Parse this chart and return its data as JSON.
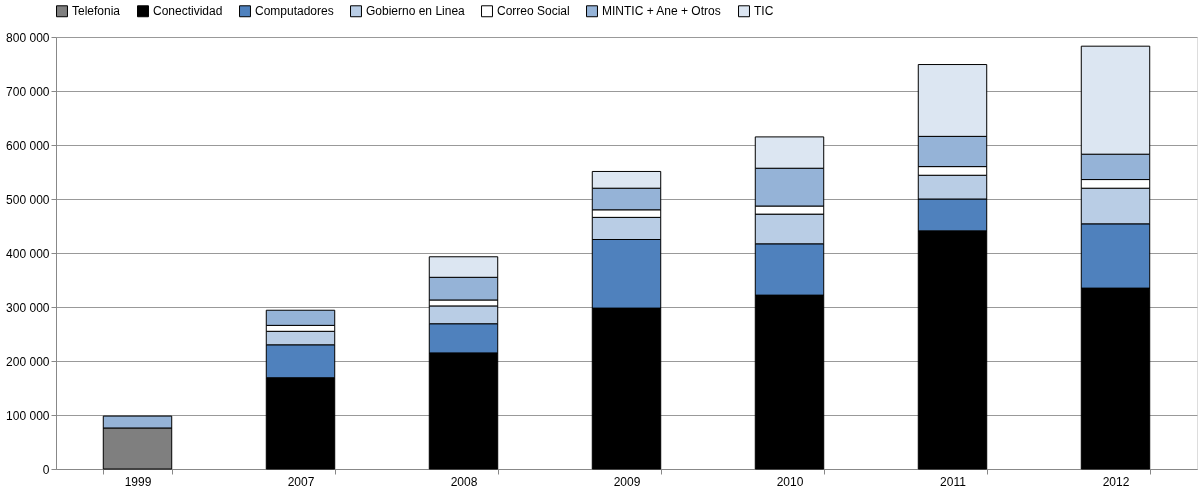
{
  "chart_data": {
    "type": "bar",
    "stacked": true,
    "legend": "top",
    "grid": "y",
    "categories": [
      "1999",
      "2007",
      "2008",
      "2009",
      "2010",
      "2011",
      "2012"
    ],
    "series": [
      {
        "name": "Telefonia",
        "color": "#7f7f7f",
        "values": [
          76000,
          null,
          null,
          null,
          null,
          null,
          null
        ]
      },
      {
        "name": "Conectividad",
        "color": "#000000",
        "values": [
          null,
          169000,
          215000,
          298000,
          322000,
          441000,
          335000
        ]
      },
      {
        "name": "Computadores",
        "color": "#4f81bd",
        "values": [
          null,
          61000,
          54000,
          127000,
          95000,
          59000,
          119000
        ]
      },
      {
        "name": "Gobierno en Linea",
        "color": "#b9cde5",
        "values": [
          null,
          25000,
          33000,
          41000,
          55000,
          44000,
          66000
        ]
      },
      {
        "name": "Correo Social",
        "color": "#ffffff",
        "values": [
          null,
          11000,
          11000,
          14000,
          15000,
          16000,
          16000
        ]
      },
      {
        "name": "MINTIC + Ane + Otros",
        "color": "#95b3d7",
        "values": [
          22000,
          28000,
          42000,
          40000,
          70000,
          56000,
          47000
        ]
      },
      {
        "name": "TIC",
        "color": "#dce6f2",
        "values": [
          null,
          null,
          38000,
          31000,
          58000,
          133000,
          200000
        ]
      }
    ],
    "ylim": [
      0,
      800000
    ],
    "yticks": [
      {
        "value": 0,
        "label": "0"
      },
      {
        "value": 100000,
        "label": "100 000"
      },
      {
        "value": 200000,
        "label": "200 000"
      },
      {
        "value": 300000,
        "label": "300 000"
      },
      {
        "value": 400000,
        "label": "400 000"
      },
      {
        "value": 500000,
        "label": "500 000"
      },
      {
        "value": 600000,
        "label": "600 000"
      },
      {
        "value": 700000,
        "label": "700 000"
      },
      {
        "value": 800000,
        "label": "800 000"
      }
    ]
  }
}
